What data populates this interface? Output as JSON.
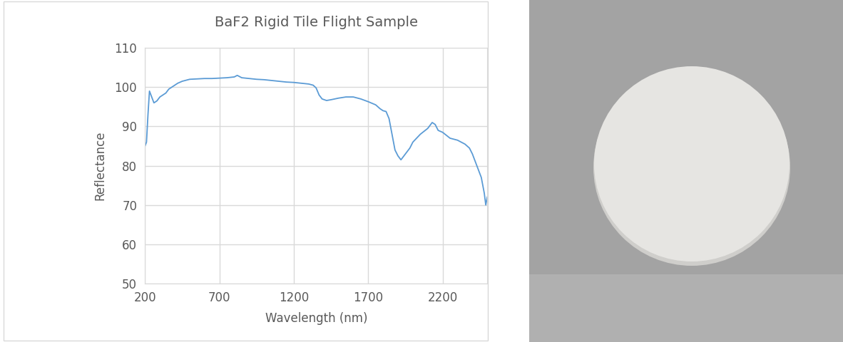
{
  "chart_data": {
    "type": "line",
    "title": "BaF2 Rigid Tile Flight Sample",
    "x_label": "Wavelength (nm)",
    "y_label": "Reflectance",
    "x": [
      200,
      210,
      220,
      230,
      240,
      250,
      260,
      280,
      300,
      320,
      340,
      360,
      380,
      400,
      420,
      450,
      500,
      550,
      600,
      650,
      700,
      750,
      800,
      820,
      850,
      900,
      950,
      1000,
      1050,
      1100,
      1150,
      1200,
      1250,
      1300,
      1330,
      1350,
      1370,
      1390,
      1420,
      1450,
      1500,
      1550,
      1600,
      1650,
      1700,
      1750,
      1780,
      1800,
      1820,
      1840,
      1860,
      1880,
      1900,
      1920,
      1940,
      1960,
      1980,
      2000,
      2050,
      2100,
      2130,
      2150,
      2170,
      2200,
      2250,
      2300,
      2350,
      2380,
      2400,
      2420,
      2440,
      2460,
      2470,
      2480,
      2490,
      2500
    ],
    "series": [
      {
        "name": "Reflectance",
        "color": "#5b9bd5",
        "values": [
          85,
          86,
          93,
          99,
          98,
          97,
          96,
          96.5,
          97.5,
          98,
          98.5,
          99.5,
          100,
          100.5,
          101,
          101.5,
          102,
          102.1,
          102.2,
          102.2,
          102.3,
          102.4,
          102.6,
          103,
          102.4,
          102.2,
          102,
          101.9,
          101.7,
          101.5,
          101.3,
          101.2,
          101,
          100.8,
          100.5,
          99.8,
          98,
          97,
          96.6,
          96.8,
          97.2,
          97.5,
          97.5,
          97,
          96.3,
          95.5,
          94.5,
          94,
          93.8,
          92,
          88,
          84,
          82.5,
          81.5,
          82.5,
          83.5,
          84.5,
          86,
          88,
          89.5,
          91,
          90.5,
          89,
          88.5,
          87,
          86.5,
          85.5,
          84.5,
          83,
          81,
          79,
          77,
          75,
          73,
          70,
          72
        ]
      }
    ],
    "xlim": [
      200,
      2500
    ],
    "ylim": [
      50,
      110
    ],
    "xticks": [
      200,
      700,
      1200,
      1700,
      2200
    ],
    "yticks": [
      50,
      60,
      70,
      80,
      90,
      100,
      110
    ],
    "grid": true
  }
}
